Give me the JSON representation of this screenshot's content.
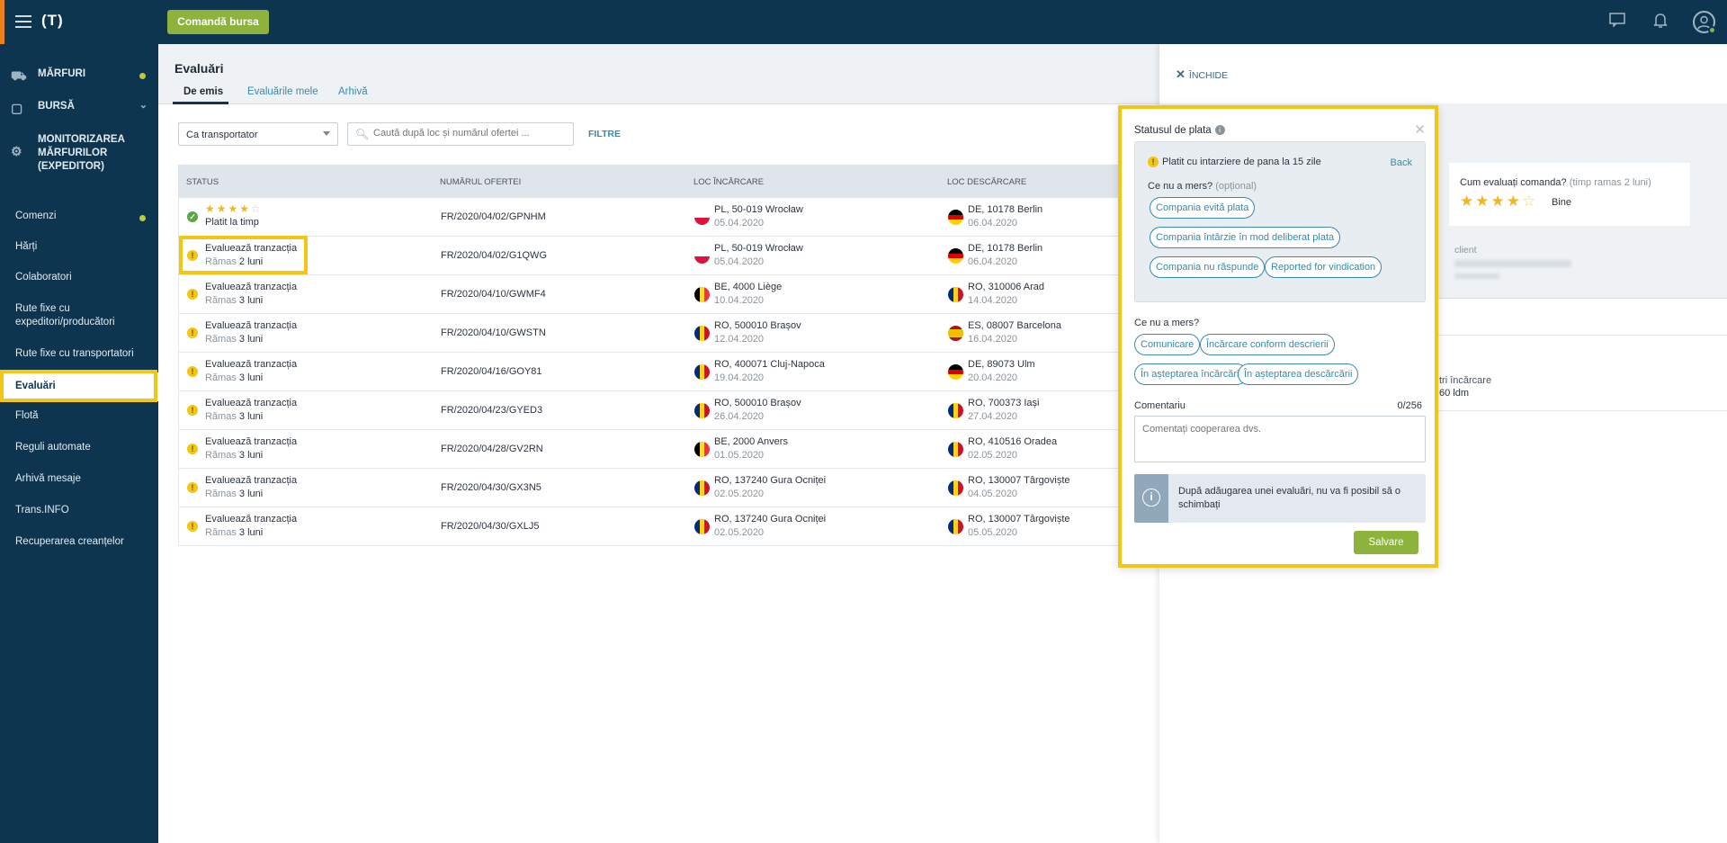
{
  "topbar": {
    "logo": "(T)",
    "command_button": "Comandă bursa",
    "icons": [
      "chat-icon",
      "bell-icon",
      "user-avatar-icon"
    ]
  },
  "sidebar": {
    "items": [
      {
        "label": "MĂRFURI",
        "icon": "goods-icon",
        "dot": true
      },
      {
        "label": "BURSĂ",
        "icon": "box-icon",
        "chevron": true
      },
      {
        "label": "MONITORIZAREA MĂRFURILOR (EXPEDITOR)",
        "icon": "tracking-icon"
      },
      {
        "label": "Comenzi",
        "dot": true
      },
      {
        "label": "Hărți"
      },
      {
        "label": "Colaboratori"
      },
      {
        "label": "Rute fixe cu expeditori/producători"
      },
      {
        "label": "Rute fixe cu transportatori"
      },
      {
        "label": "Evaluări",
        "active": true
      },
      {
        "label": "Flotă"
      },
      {
        "label": "Reguli automate"
      },
      {
        "label": "Arhivă mesaje"
      },
      {
        "label": "Trans.INFO"
      },
      {
        "label": "Recuperarea creanțelor"
      }
    ]
  },
  "main": {
    "title": "Evaluări",
    "tabs": [
      "De emis",
      "Evaluările mele",
      "Arhivă"
    ],
    "active_tab": "De emis",
    "select_value": "Ca transportator",
    "search_placeholder": "Caută după loc și numărul ofertei ...",
    "filters_label": "FILTRE",
    "columns": [
      "STATUS",
      "NUMĂRUL OFERTEI",
      "LOC ÎNCĂRCARE",
      "LOC DESCĂRCARE"
    ],
    "rows": [
      {
        "status_type": "ok",
        "stars": 4,
        "status": "Platit la timp",
        "remain_prefix": "",
        "remain_value": "",
        "offer": "FR/2020/04/02/GPNHM",
        "load_country": "pl",
        "load": "PL, 50-019 Wrocław",
        "load_date": "05.04.2020",
        "unload_country": "de",
        "unload": "DE, 10178 Berlin",
        "unload_date": "06.04.2020"
      },
      {
        "status_type": "warn",
        "status": "Evaluează tranzacția",
        "remain_prefix": "Rămas",
        "remain_value": "2 luni",
        "offer": "FR/2020/04/02/G1QWG",
        "load_country": "pl",
        "load": "PL, 50-019 Wrocław",
        "load_date": "05.04.2020",
        "unload_country": "de",
        "unload": "DE, 10178 Berlin",
        "unload_date": "06.04.2020"
      },
      {
        "status_type": "warn",
        "status": "Evaluează tranzacția",
        "remain_prefix": "Rămas",
        "remain_value": "3 luni",
        "offer": "FR/2020/04/10/GWMF4",
        "load_country": "be",
        "load": "BE, 4000 Liège",
        "load_date": "10.04.2020",
        "unload_country": "ro",
        "unload": "RO, 310006 Arad",
        "unload_date": "14.04.2020"
      },
      {
        "status_type": "warn",
        "status": "Evaluează tranzacția",
        "remain_prefix": "Rămas",
        "remain_value": "3 luni",
        "offer": "FR/2020/04/10/GWSTN",
        "load_country": "ro",
        "load": "RO, 500010 Brașov",
        "load_date": "12.04.2020",
        "unload_country": "es",
        "unload": "ES, 08007 Barcelona",
        "unload_date": "16.04.2020"
      },
      {
        "status_type": "warn",
        "status": "Evaluează tranzacția",
        "remain_prefix": "Rămas",
        "remain_value": "3 luni",
        "offer": "FR/2020/04/16/GOY81",
        "load_country": "ro",
        "load": "RO, 400071 Cluj-Napoca",
        "load_date": "19.04.2020",
        "unload_country": "de",
        "unload": "DE, 89073 Ulm",
        "unload_date": "20.04.2020"
      },
      {
        "status_type": "warn",
        "status": "Evaluează tranzacția",
        "remain_prefix": "Rămas",
        "remain_value": "3 luni",
        "offer": "FR/2020/04/23/GYED3",
        "load_country": "ro",
        "load": "RO, 500010 Brașov",
        "load_date": "26.04.2020",
        "unload_country": "ro",
        "unload": "RO, 700373 Iași",
        "unload_date": "27.04.2020"
      },
      {
        "status_type": "warn",
        "status": "Evaluează tranzacția",
        "remain_prefix": "Rămas",
        "remain_value": "3 luni",
        "offer": "FR/2020/04/28/GV2RN",
        "load_country": "be",
        "load": "BE, 2000 Anvers",
        "load_date": "01.05.2020",
        "unload_country": "ro",
        "unload": "RO, 410516 Oradea",
        "unload_date": "02.05.2020"
      },
      {
        "status_type": "warn",
        "status": "Evaluează tranzacția",
        "remain_prefix": "Rămas",
        "remain_value": "3 luni",
        "offer": "FR/2020/04/30/GX3N5",
        "load_country": "ro",
        "load": "RO, 137240 Gura Ocniței",
        "load_date": "02.05.2020",
        "unload_country": "ro",
        "unload": "RO, 130007 Târgoviște",
        "unload_date": "04.05.2020"
      },
      {
        "status_type": "warn",
        "status": "Evaluează tranzacția",
        "remain_prefix": "Rămas",
        "remain_value": "3 luni",
        "offer": "FR/2020/04/30/GXLJ5",
        "load_country": "ro",
        "load": "RO, 137240 Gura Ocniței",
        "load_date": "02.05.2020",
        "unload_country": "ro",
        "unload": "RO, 130007 Târgoviște",
        "unload_date": "05.05.2020"
      }
    ]
  },
  "panel": {
    "close_label": "ÎNCHIDE",
    "rating_question": "Cum evaluați comanda?",
    "rating_time": "(timp ramas 2 luni)",
    "rating_stars": 4,
    "rating_label": "Bine",
    "client_label": "client",
    "partial_load_label": "tri încărcare",
    "partial_ldm": "60 ldm"
  },
  "popup": {
    "title": "Statusul de plata",
    "selected_status": "Platit cu intarziere de pana la 15 zile",
    "back_label": "Back",
    "q1": "Ce nu a mers?",
    "q1_optional": "(opțional)",
    "chips1": [
      "Compania evită plata",
      "Compania întârzie în mod deliberat plata",
      "Compania nu răspunde",
      "Reported for vindication"
    ],
    "q2": "Ce nu a mers?",
    "chips2": [
      "Comunicare",
      "Încărcare conform descrierii",
      "În așteptarea încărcării",
      "În așteptarea descărcării"
    ],
    "comment_label": "Comentariu",
    "comment_count": "0/256",
    "comment_placeholder": "Comentați cooperarea dvs.",
    "info_text": "După adăugarea unei evaluări, nu va fi posibil să o schimbați",
    "save_label": "Salvare"
  },
  "colors": {
    "topbar": "#0e3550",
    "accent_green": "#8db33c",
    "highlight": "#f3c613",
    "link": "#3a8aa8"
  }
}
